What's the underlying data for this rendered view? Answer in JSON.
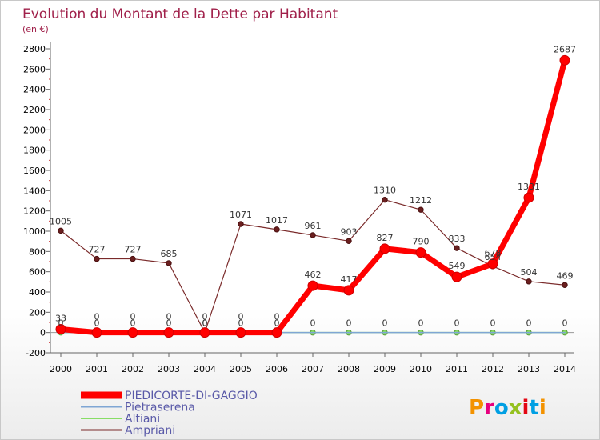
{
  "chart_data": {
    "type": "line",
    "title": "Evolution du Montant de la Dette par Habitant",
    "subtitle": "(en €)",
    "x": [
      "2000",
      "2001",
      "2002",
      "2003",
      "2004",
      "2005",
      "2006",
      "2007",
      "2008",
      "2009",
      "2010",
      "2011",
      "2012",
      "2013",
      "2014"
    ],
    "ylim": [
      -200,
      2800
    ],
    "yticks": [
      -200,
      0,
      200,
      400,
      600,
      800,
      1000,
      1200,
      1400,
      1600,
      1800,
      2000,
      2200,
      2400,
      2600,
      2800
    ],
    "grid": false,
    "legend_position": "bottom-left",
    "series": [
      {
        "name": "PIEDICORTE-DI-GAGGIO",
        "color": "#ff0000",
        "values": [
          33,
          0,
          0,
          0,
          0,
          0,
          0,
          462,
          417,
          827,
          790,
          549,
          678,
          1331,
          2687
        ],
        "labels": [
          "33",
          "0",
          "0",
          "0",
          "0",
          "0",
          "0",
          "462",
          "417",
          "827",
          "790",
          "549",
          "678",
          "1331",
          "2687"
        ]
      },
      {
        "name": "Pietraserena",
        "color": "#7fa6d4",
        "values": [
          0,
          0,
          0,
          0,
          0,
          0,
          0,
          0,
          0,
          0,
          0,
          0,
          0,
          0,
          0
        ],
        "labels": []
      },
      {
        "name": "Altiani",
        "color": "#88dd66",
        "values": [
          0,
          0,
          0,
          0,
          0,
          0,
          0,
          0,
          0,
          0,
          0,
          0,
          0,
          0,
          0
        ],
        "labels": [
          "0",
          "0",
          "0",
          "0",
          "0",
          "0",
          "0",
          "0",
          "0",
          "0",
          "0",
          "0",
          "0",
          "0",
          "0"
        ]
      },
      {
        "name": "Ampriani",
        "color": "#7a2a2a",
        "values": [
          1005,
          727,
          727,
          685,
          0,
          1071,
          1017,
          961,
          903,
          1310,
          1212,
          833,
          654,
          504,
          469
        ],
        "labels": [
          "1005",
          "727",
          "727",
          "685",
          "0",
          "1071",
          "1017",
          "961",
          "903",
          "1310",
          "1212",
          "833",
          "654",
          "504",
          "469"
        ]
      }
    ]
  },
  "logo": {
    "text": "Proxiti",
    "letter_colors": [
      "#f39200",
      "#e6007e",
      "#009fe3",
      "#95c11f",
      "#e30613",
      "#009fe3",
      "#f39200"
    ]
  }
}
